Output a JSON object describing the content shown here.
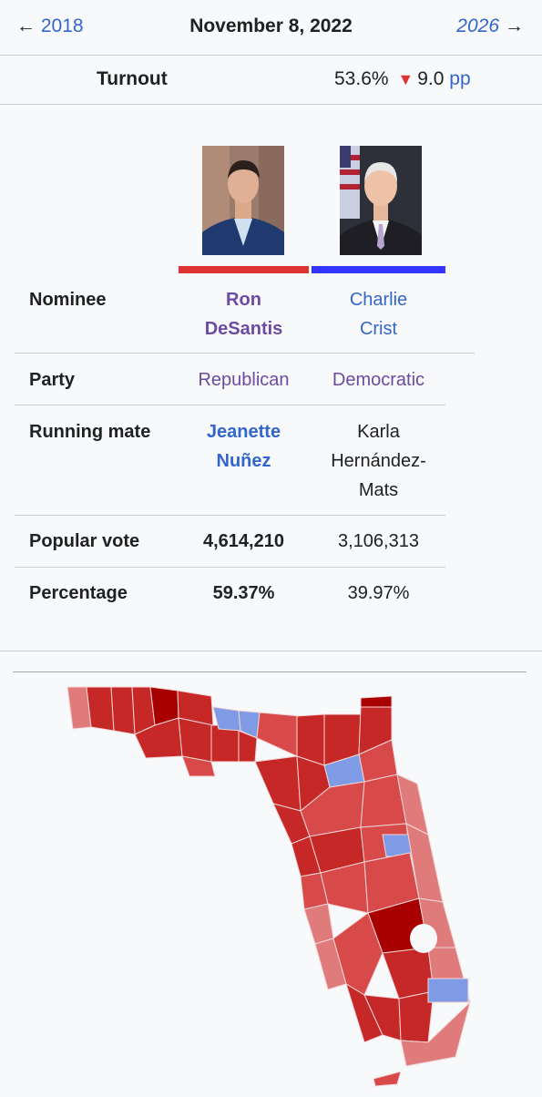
{
  "nav": {
    "prev_arrow": "←",
    "prev_year": "2018",
    "date": "November 8, 2022",
    "next_year": "2026",
    "next_arrow": "→"
  },
  "turnout": {
    "label": "Turnout",
    "value": "53.6%",
    "change_icon": "down-triangle",
    "change_glyph": "▼",
    "change": "9.0",
    "unit": "pp"
  },
  "candidates": [
    {
      "name_line1": "Ron",
      "name_line2": "DeSantis",
      "party": "Republican",
      "mate_line1": "Jeanette",
      "mate_line2": "Nuñez",
      "popular_vote": "4,614,210",
      "percentage": "59.37%",
      "color": "#dd3333"
    },
    {
      "name_line1": "Charlie",
      "name_line2": "Crist",
      "party": "Democratic",
      "mate_line1": "Karla",
      "mate_line2": "Hernández-",
      "mate_line3": "Mats",
      "popular_vote": "3,106,313",
      "percentage": "39.97%",
      "color": "#3333ff"
    }
  ],
  "rows": {
    "nominee": "Nominee",
    "party": "Party",
    "running_mate": "Running mate",
    "popular_vote": "Popular vote",
    "percentage": "Percentage"
  },
  "map": {
    "colors": {
      "rep_dark": "#a80000",
      "rep_strong": "#c62828",
      "rep_mid": "#d84a4a",
      "rep_light": "#e07b7b",
      "dem_light": "#7f9be6",
      "water": "#f8f9fa"
    }
  }
}
